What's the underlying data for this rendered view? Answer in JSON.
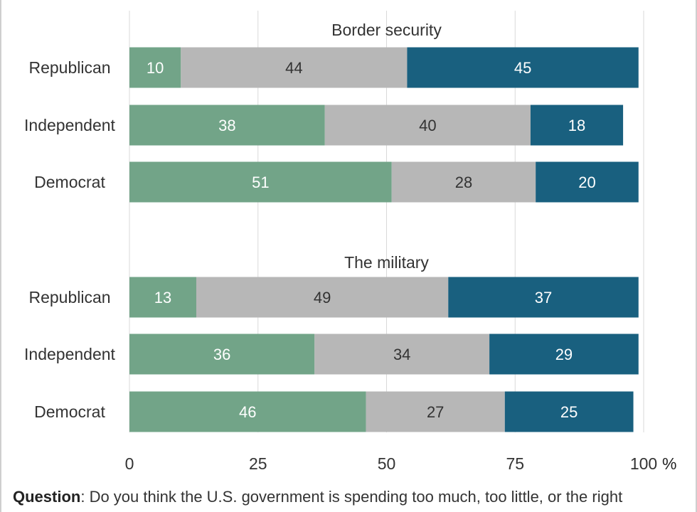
{
  "chart_data": {
    "type": "bar",
    "orientation": "horizontal",
    "stacked": true,
    "title": "",
    "xlim": [
      0,
      100
    ],
    "x_ticks": [
      "0",
      "25",
      "50",
      "75",
      "100"
    ],
    "x_unit": "%",
    "grid": true,
    "colors": [
      "#72a488",
      "#b7b7b7",
      "#19607f"
    ],
    "label_colors": [
      "#ffffff",
      "#333333",
      "#ffffff"
    ],
    "groups": [
      {
        "title": "Border security",
        "categories": [
          "Republican",
          "Independent",
          "Democrat"
        ],
        "series": [
          {
            "values": [
              10,
              38,
              51
            ]
          },
          {
            "values": [
              44,
              40,
              28
            ]
          },
          {
            "values": [
              45,
              18,
              20
            ]
          }
        ]
      },
      {
        "title": "The military",
        "categories": [
          "Republican",
          "Independent",
          "Democrat"
        ],
        "series": [
          {
            "values": [
              13,
              36,
              46
            ]
          },
          {
            "values": [
              49,
              34,
              27
            ]
          },
          {
            "values": [
              37,
              29,
              25
            ]
          }
        ]
      }
    ]
  },
  "footer": {
    "question_label": "Question",
    "question_text": ": Do you think the U.S. government is spending too much, too little, or the right"
  }
}
